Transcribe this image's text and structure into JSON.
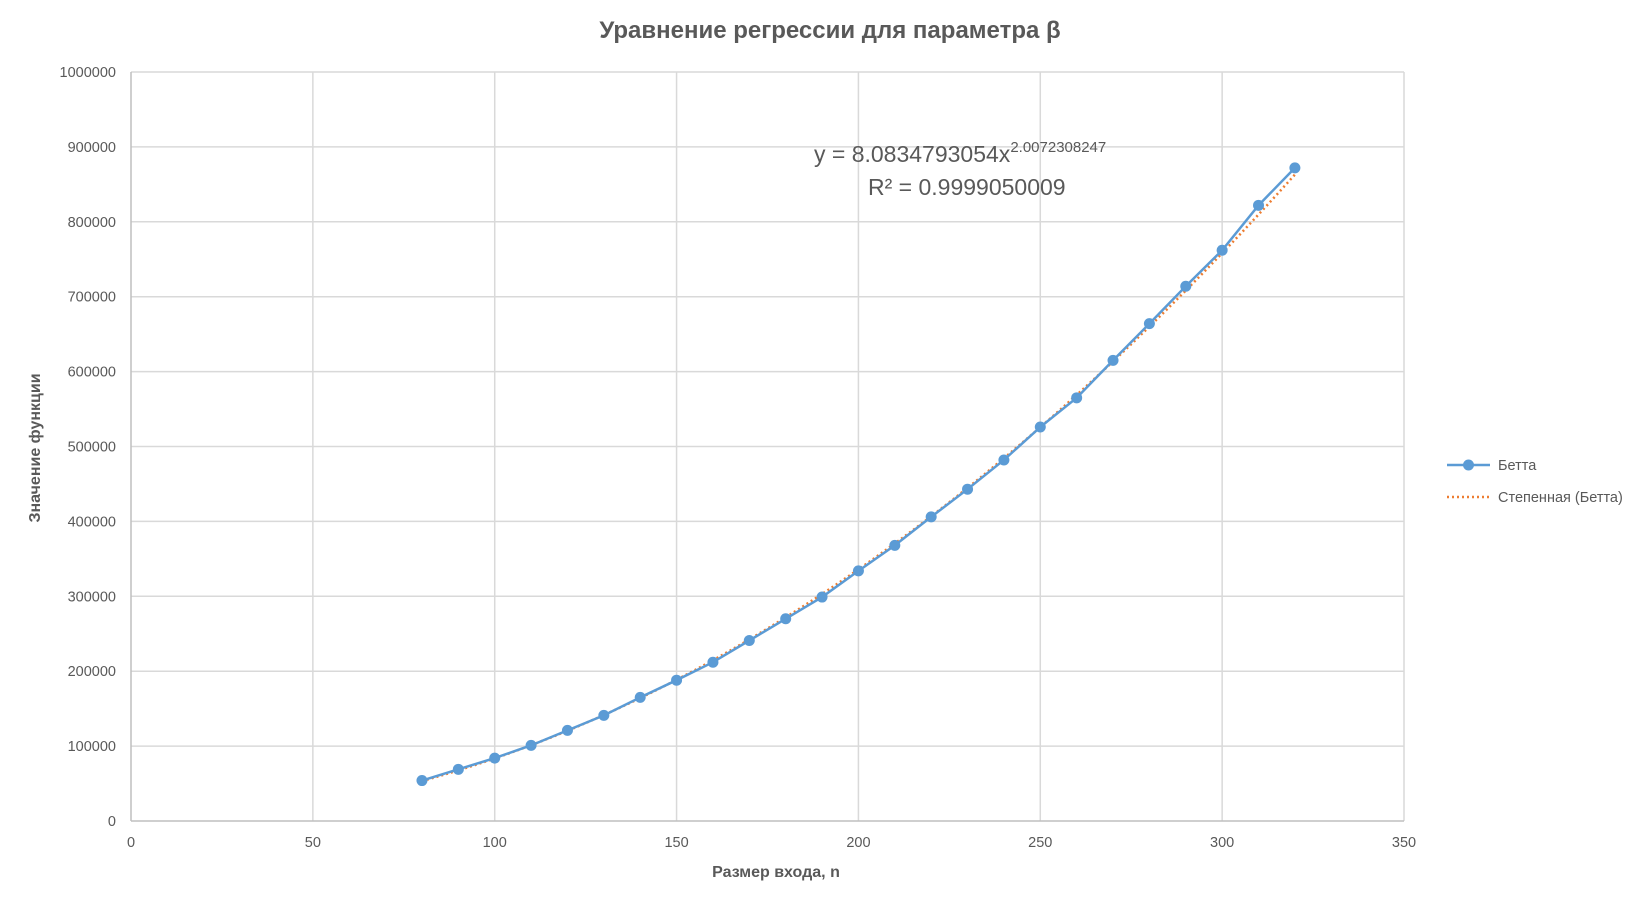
{
  "chart_data": {
    "type": "scatter",
    "title": "Уравнение регрессии для параметра β",
    "xlabel": "Размер входа, n",
    "ylabel": "Значение функции",
    "xlim": [
      0,
      350
    ],
    "ylim": [
      0,
      1000000
    ],
    "x_ticks": [
      "0",
      "50",
      "100",
      "150",
      "200",
      "250",
      "300",
      "350"
    ],
    "y_ticks": [
      "0",
      "100000",
      "200000",
      "300000",
      "400000",
      "500000",
      "600000",
      "700000",
      "800000",
      "900000",
      "1000000"
    ],
    "grid": true,
    "legend_position": "right",
    "series": [
      {
        "name": "Бетта",
        "style": "line-markers",
        "color": "#5B9BD5",
        "x": [
          80,
          90,
          100,
          110,
          120,
          130,
          140,
          150,
          160,
          170,
          180,
          190,
          200,
          210,
          220,
          230,
          240,
          250,
          260,
          270,
          280,
          290,
          300,
          310,
          320
        ],
        "y": [
          54000,
          69000,
          84000,
          101000,
          121000,
          141000,
          165000,
          188000,
          212000,
          241000,
          270000,
          299000,
          334000,
          368000,
          406000,
          443000,
          482000,
          526000,
          565000,
          615000,
          664000,
          714000,
          762000,
          822000,
          872000
        ]
      },
      {
        "name": "Степенная (Бетта)",
        "style": "dotted-trendline",
        "color": "#ED7D31",
        "coefficient": 8.0834793054,
        "exponent": 2.0072308247
      }
    ],
    "annotation": {
      "equation_prefix": "y = 8.0834793054x",
      "equation_exponent": "2.0072308247",
      "r_squared": "R² = 0.9999050009"
    }
  }
}
